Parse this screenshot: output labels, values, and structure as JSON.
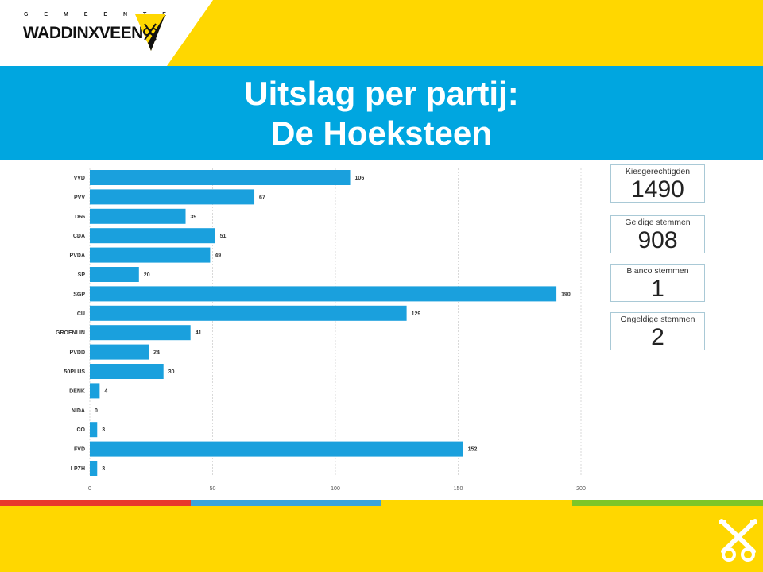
{
  "header": {
    "logo_small": "G E M E E N T E",
    "logo_name": "WADDINXVEEN"
  },
  "title": {
    "line1": "Uitslag per partij:",
    "line2": "De Hoeksteen"
  },
  "kpis": [
    {
      "label": "Kiesgerechtigden",
      "value": "1490"
    },
    {
      "label": "Geldige stemmen",
      "value": "908"
    },
    {
      "label": "Blanco stemmen",
      "value": "1"
    },
    {
      "label": "Ongeldige stemmen",
      "value": "2"
    }
  ],
  "colors": {
    "bar": "#1aa0dd",
    "title_band": "#00a6e0",
    "brand_yellow": "#ffd700",
    "stripe": [
      "#e8392c",
      "#3aa4dc",
      "#ffd700",
      "#7cc628"
    ]
  },
  "chart_data": {
    "type": "bar",
    "orientation": "horizontal",
    "categories": [
      "VVD",
      "PVV",
      "D66",
      "CDA",
      "PVDA",
      "SP",
      "SGP",
      "CU",
      "GROENLIN",
      "PVDD",
      "50PLUS",
      "DENK",
      "NIDA",
      "CO",
      "FVD",
      "LPZH"
    ],
    "values": [
      106,
      67,
      39,
      51,
      49,
      20,
      190,
      129,
      41,
      24,
      30,
      4,
      0,
      3,
      152,
      3
    ],
    "xticks": [
      0,
      50,
      100,
      150,
      200
    ],
    "xlim": [
      0,
      200
    ],
    "grid": true,
    "data_labels": true
  }
}
